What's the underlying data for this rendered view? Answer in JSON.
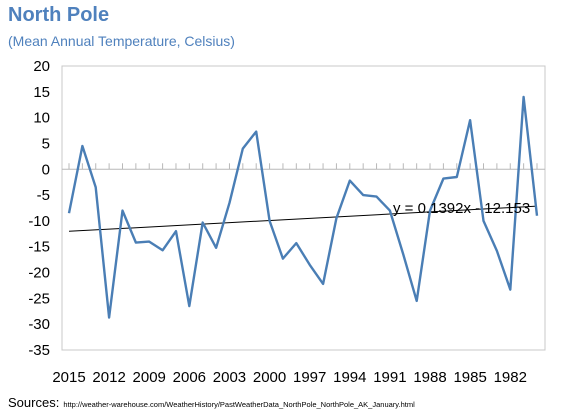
{
  "title": "North Pole",
  "subtitle": "(Mean Annual Temperature, Celsius)",
  "sources_label": "Sources:",
  "sources_url": "http://weather-warehouse.com/WeatherHistory/PastWeatherData_NorthPole_NorthPole_AK_January.html",
  "colors": {
    "title": "#4f81bd",
    "series": "#4a7eb5",
    "trend": "#000000",
    "plot_border": "#c8c8c8"
  },
  "chart_data": {
    "type": "line",
    "title": "North Pole",
    "subtitle": "(Mean Annual Temperature, Celsius)",
    "xlabel": "",
    "ylabel": "",
    "x_reversed": true,
    "xlim": [
      1980,
      2016
    ],
    "ylim": [
      -35,
      20
    ],
    "y_ticks": [
      20,
      15,
      10,
      5,
      0,
      -5,
      -10,
      -15,
      -20,
      -25,
      -30,
      -35
    ],
    "x_tick_labels": [
      "2015",
      "2012",
      "2009",
      "2006",
      "2003",
      "2000",
      "1997",
      "1994",
      "1991",
      "1988",
      "1985",
      "1982"
    ],
    "grid": false,
    "legend": "none",
    "series": [
      {
        "x": [
          2015,
          2014,
          2013,
          2012,
          2011,
          2010,
          2009,
          2008,
          2007,
          2006,
          2005,
          2004,
          2003,
          2002,
          2001,
          2000,
          1999,
          1998,
          1997,
          1996,
          1995,
          1994,
          1993,
          1992,
          1991,
          1990,
          1989,
          1988,
          1987,
          1986,
          1985,
          1984,
          1983,
          1982,
          1981,
          1980
        ],
        "y": [
          -8.5,
          4.5,
          -3.5,
          -28.7,
          -8,
          -14.2,
          -14,
          -15.7,
          -12,
          -26.5,
          -10.3,
          -15.2,
          -6.5,
          4,
          7.3,
          -10,
          -17.3,
          -14.3,
          -18.5,
          -22.2,
          -9.5,
          -2.2,
          -5,
          -5.3,
          -8,
          -16.5,
          -25.5,
          -8,
          -1.8,
          -1.5,
          9.5,
          -10,
          -15.8,
          -23.3,
          14,
          -9
        ]
      }
    ],
    "trendline": {
      "label": "y = 0.1392x - 12.153",
      "slope": 0.1392,
      "intercept": -12.153
    }
  }
}
